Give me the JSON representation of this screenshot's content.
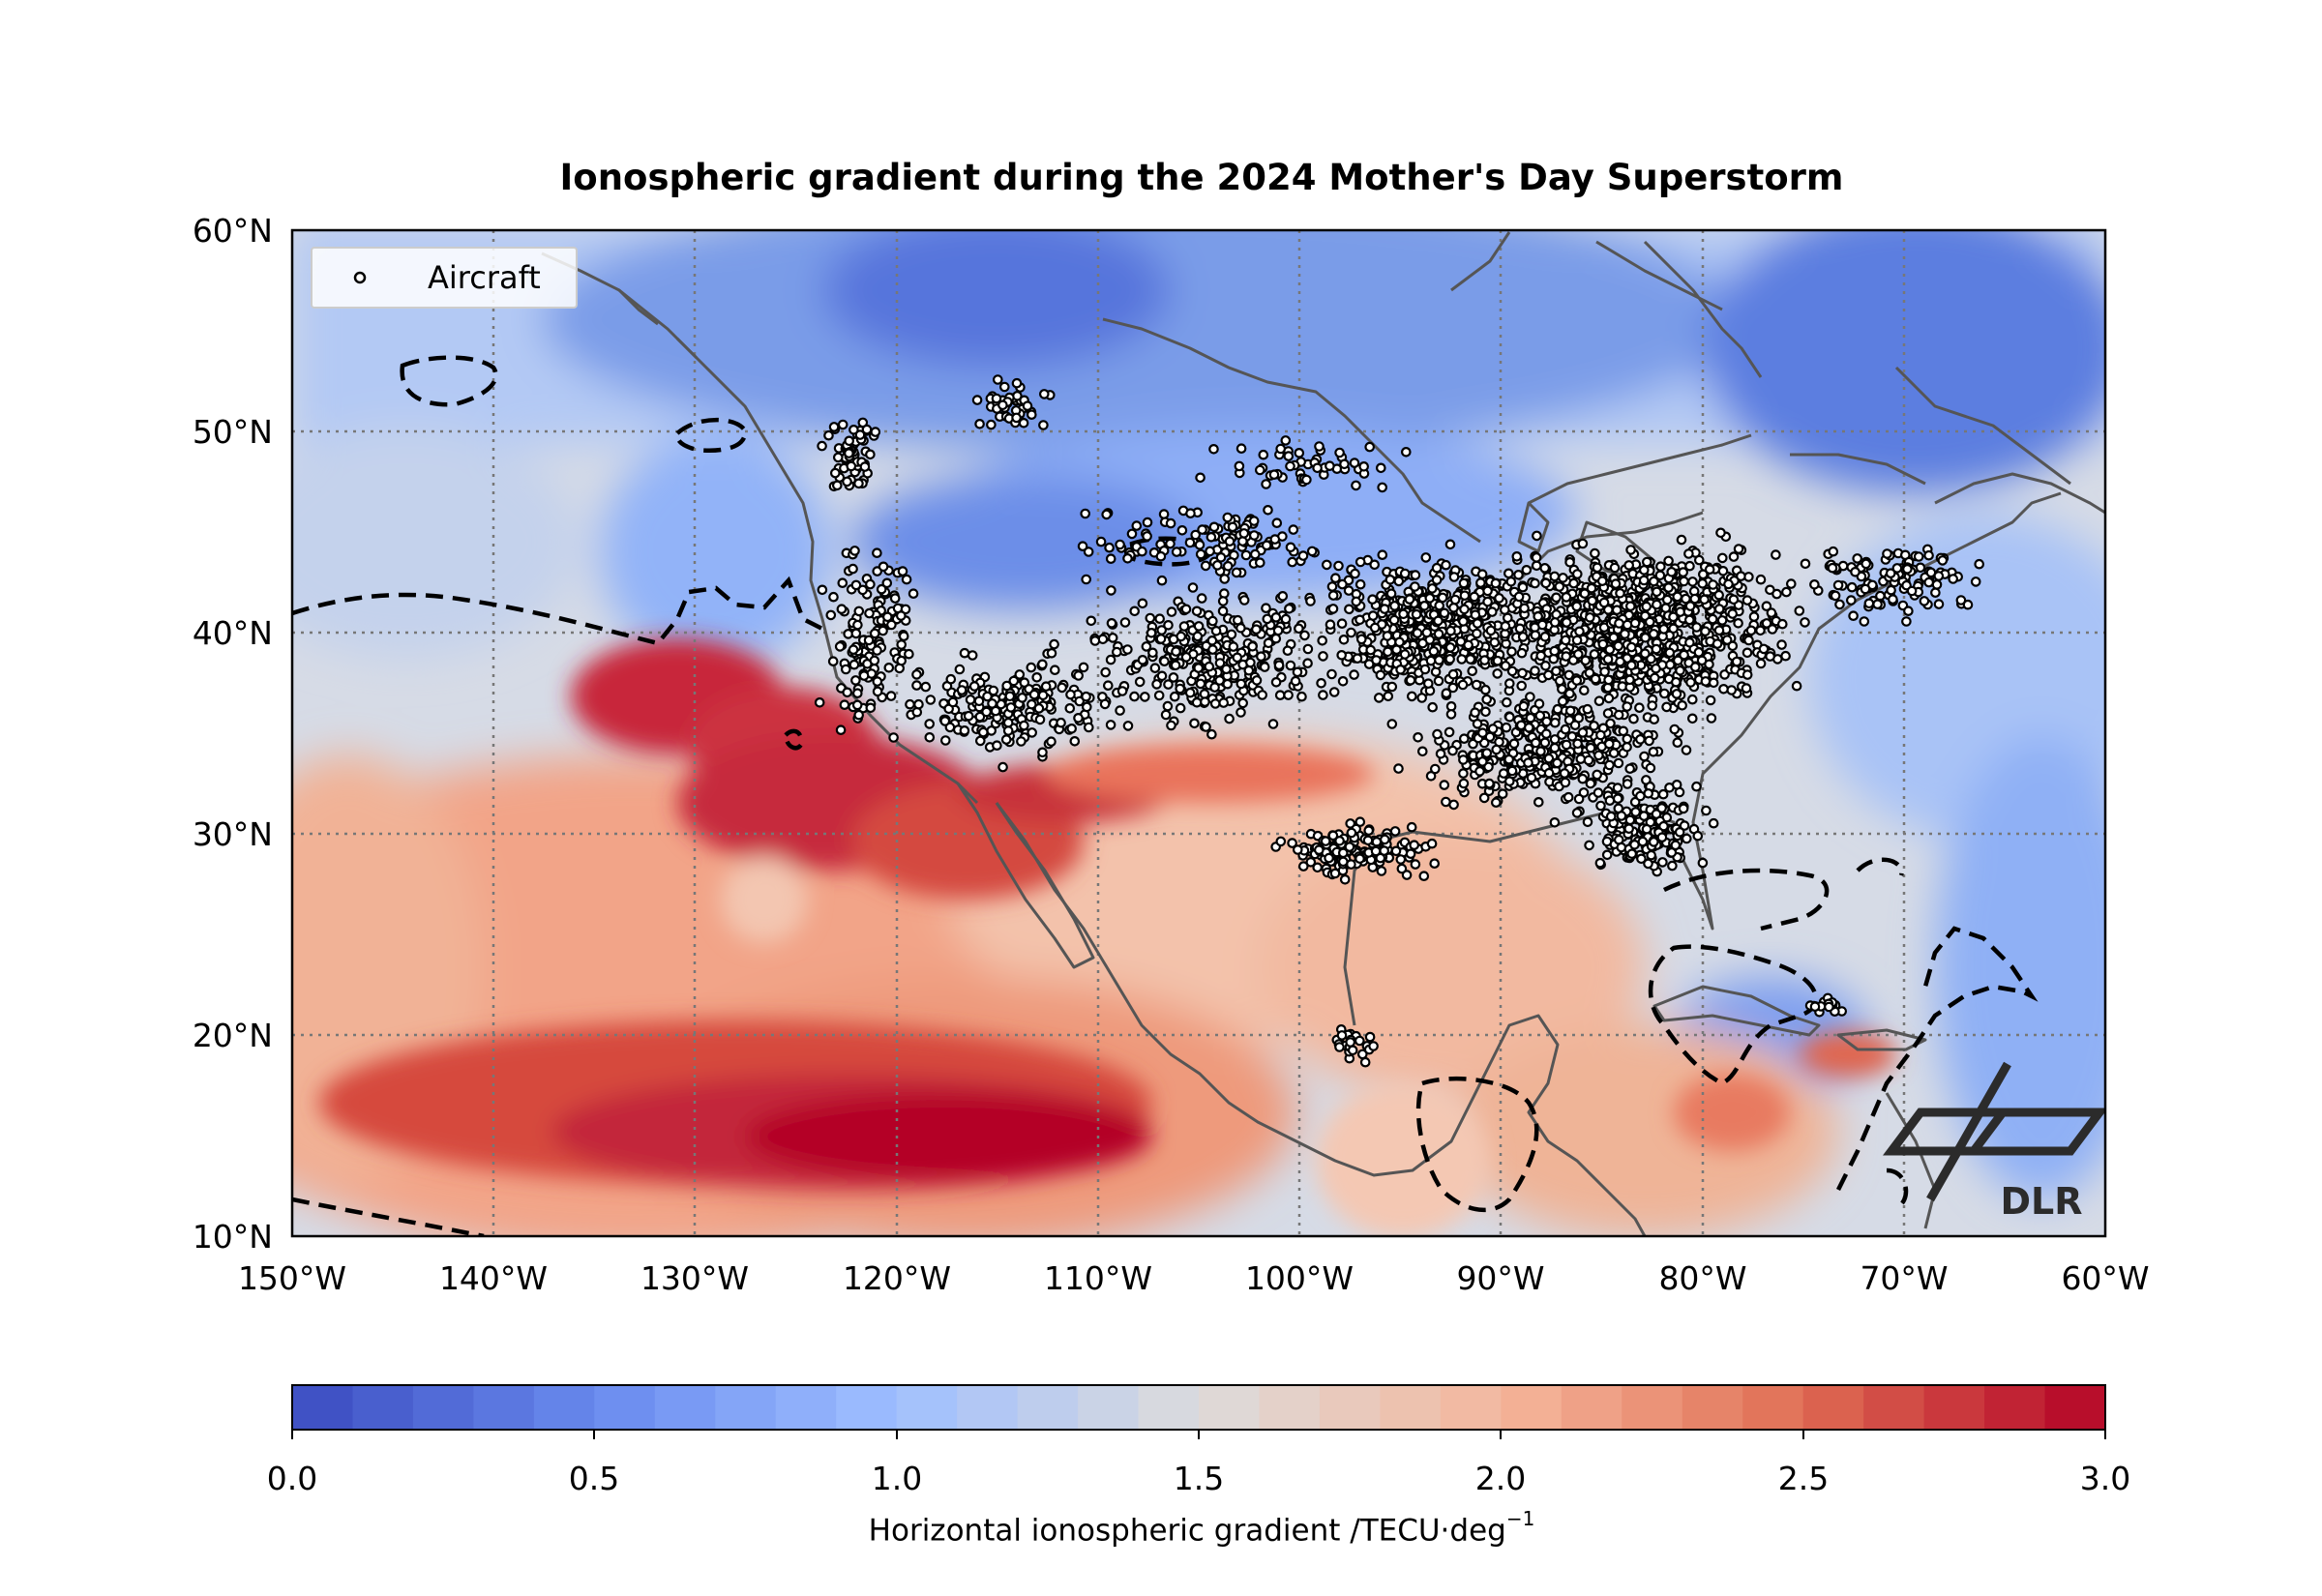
{
  "title": "Ionospheric gradient during the 2024 Mother's Day Superstorm",
  "legend": {
    "label": "Aircraft",
    "marker": "open-circle"
  },
  "map": {
    "lon_range": [
      -150,
      -60
    ],
    "lat_range": [
      10,
      60
    ],
    "lon_ticks": [
      "150°W",
      "140°W",
      "130°W",
      "120°W",
      "110°W",
      "100°W",
      "90°W",
      "80°W",
      "70°W",
      "60°W"
    ],
    "lat_ticks": [
      "10°N",
      "20°N",
      "30°N",
      "40°N",
      "50°N",
      "60°N"
    ],
    "gridlines": "dotted grey",
    "coastlines": "dark grey",
    "contour_line": "dashed black (1.5 TECU/deg)"
  },
  "colorbar": {
    "label_main": "Horizontal ionospheric gradient /TECU·deg",
    "label_exp": "−1",
    "ticks": [
      "0.0",
      "0.5",
      "1.0",
      "1.5",
      "2.0",
      "2.5",
      "3.0"
    ],
    "min": 0,
    "max": 3,
    "colormap": "coolwarm"
  },
  "logo": {
    "text": "DLR"
  },
  "colors": {
    "low": "#3b4cc0",
    "mid": "#dddcdc",
    "high": "#b40426",
    "coast": "#555555"
  }
}
